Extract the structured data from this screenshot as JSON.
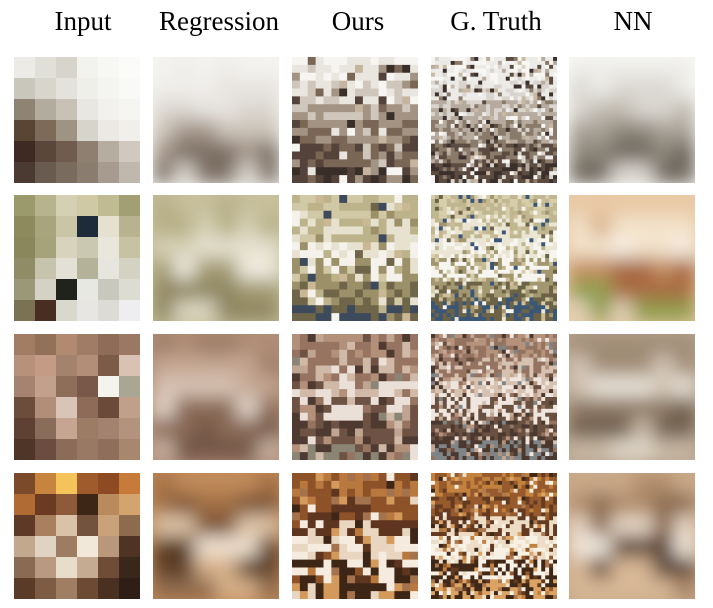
{
  "figure": {
    "columns": [
      {
        "key": "input",
        "label": "Input"
      },
      {
        "key": "regression",
        "label": "Regression"
      },
      {
        "key": "ours",
        "label": "Ours"
      },
      {
        "key": "ground_truth",
        "label": "G. Truth"
      },
      {
        "key": "nn",
        "label": "NN"
      }
    ],
    "rows": 4,
    "palettes": [
      {
        "scene": "bright-bedroom",
        "input": [
          "#ecebe6",
          "#e0dfd8",
          "#d6d4cb",
          "#f2f2ee",
          "#f7f7f4",
          "#fbfbf9",
          "#c9c6bb",
          "#d8d6cc",
          "#e3e2dc",
          "#efefe9",
          "#f4f4f1",
          "#f9f9f7",
          "#8f8373",
          "#b3ab9d",
          "#c8c2b6",
          "#e8e7e2",
          "#f2f1ee",
          "#f5f5f2",
          "#5a4434",
          "#7d6a58",
          "#9f9383",
          "#d7d4cc",
          "#ece9e4",
          "#f0efeb",
          "#3e2a22",
          "#5a463a",
          "#6f5c4e",
          "#8e7f70",
          "#b6aca0",
          "#d1c9bf",
          "#4b3a31",
          "#6a5b50",
          "#7a6b5f",
          "#8b7c70",
          "#a79a8e",
          "#c1b8ad"
        ],
        "regression": [
          "#f4f3f0",
          "#efedea",
          "#e7e4df",
          "#dcd7d0",
          "#ccc3b8",
          "#a4968a",
          "#7c6e63",
          "#d8d2c9"
        ],
        "ours": [
          "#f6f5f2",
          "#e9e6e0",
          "#cfc7bc",
          "#a39382",
          "#7a6654",
          "#54433a",
          "#3a2e29",
          "#c6b59e"
        ],
        "ground_truth": [
          "#f7f6f3",
          "#ecebe8",
          "#d9d5ce",
          "#b6ab9e",
          "#8a7a6a",
          "#5c4b40",
          "#3b302b",
          "#c9b9a2"
        ],
        "nn": [
          "#f9f9f7",
          "#eeede9",
          "#dad7d0",
          "#c1bcb1",
          "#a9a297",
          "#8f877c",
          "#6e665c",
          "#d6d2ca"
        ]
      },
      {
        "scene": "olive-bedroom",
        "input": [
          "#9b9a6c",
          "#b7b38c",
          "#d4d0b3",
          "#cfc9a6",
          "#c1bb93",
          "#a29f74",
          "#8d8b5e",
          "#a8a57d",
          "#c9c5a6",
          "#1e2b3a",
          "#e4e1cf",
          "#b8b38e",
          "#8a875d",
          "#a6a27a",
          "#d7d3bd",
          "#cac8b0",
          "#e9e7dc",
          "#c6c2a2",
          "#8f8c66",
          "#c7c4ad",
          "#e3e1d5",
          "#b5b29a",
          "#e6e5de",
          "#d4d2c2",
          "#9a9876",
          "#d3d2c5",
          "#1f231c",
          "#e8e8e2",
          "#c9c8bd",
          "#dddcd3",
          "#7a7253",
          "#4a2d22",
          "#d9d8cd",
          "#e7e6e2",
          "#dcdbd5",
          "#eeeef0"
        ],
        "regression": [
          "#c6bf9a",
          "#b6ae86",
          "#d8d2b7",
          "#e6e1cf",
          "#f0ede2",
          "#a49b73",
          "#8f8660",
          "#dcd6c1"
        ],
        "ours": [
          "#d1c9a5",
          "#bcb38b",
          "#e7e2cf",
          "#f4f2ea",
          "#9c9069",
          "#6f6549",
          "#3d4a5c",
          "#c9b893"
        ],
        "ground_truth": [
          "#d6ceab",
          "#c0b790",
          "#ebe6d4",
          "#f7f5ef",
          "#a3976f",
          "#6c6246",
          "#3b5777",
          "#cdbd98"
        ],
        "nn": [
          "#e9c9a5",
          "#d9b188",
          "#f3e3cc",
          "#f7efe3",
          "#c48f62",
          "#a86a42",
          "#8f9d4e",
          "#e2d2b8"
        ]
      },
      {
        "scene": "tan-bedroom",
        "input": [
          "#a27c63",
          "#93705a",
          "#b18a70",
          "#a07c66",
          "#8e6c57",
          "#9a7864",
          "#b7917a",
          "#c49c85",
          "#a3826e",
          "#b28e79",
          "#7c5b48",
          "#d9c2b3",
          "#a68270",
          "#c2a08c",
          "#8e6d5b",
          "#795849",
          "#f4f4ee",
          "#a9a693",
          "#6c4c3b",
          "#b08e7a",
          "#d9c5b8",
          "#8d6b58",
          "#6a4a38",
          "#c0a08a",
          "#5e4133",
          "#8a6c5a",
          "#c6a692",
          "#9d7c66",
          "#a48270",
          "#b4937e",
          "#4f3528",
          "#6a4d3e",
          "#8b6c59",
          "#9a7964",
          "#8f6f5b",
          "#a9876f"
        ],
        "regression": [
          "#b08d77",
          "#9d7b66",
          "#c4a793",
          "#d8c2b3",
          "#e6d9cf",
          "#8a6a57",
          "#735646",
          "#c9b3a3"
        ],
        "ours": [
          "#b39079",
          "#967461",
          "#d1b9a8",
          "#ebe0d8",
          "#6e5344",
          "#4e3a30",
          "#8b8575",
          "#c0a692"
        ],
        "ground_truth": [
          "#b5927b",
          "#957361",
          "#d7c2b2",
          "#efe6df",
          "#6a5040",
          "#4b382e",
          "#7f8486",
          "#c2a893"
        ],
        "nn": [
          "#b7a48e",
          "#a08c76",
          "#d3c6b6",
          "#ebe4da",
          "#8d7965",
          "#6f5e4d",
          "#c8b9a5",
          "#e0d7ca"
        ]
      },
      {
        "scene": "ornate-bedroom",
        "input": [
          "#7a4a2a",
          "#c6843e",
          "#f4c35a",
          "#a05b2c",
          "#8e4a22",
          "#c77b3a",
          "#b06a33",
          "#6b3a22",
          "#8d5a3a",
          "#3e2617",
          "#b98a5c",
          "#d4a46e",
          "#5e3a26",
          "#a88060",
          "#d9c2a8",
          "#73533e",
          "#caa27a",
          "#8f6b4e",
          "#c2a98e",
          "#e0d3c2",
          "#9d7c62",
          "#f1e8da",
          "#b9977a",
          "#4f3423",
          "#8a6a52",
          "#b89a80",
          "#e8dcca",
          "#c5ab92",
          "#6e4c36",
          "#3a271c",
          "#5a3b28",
          "#7d5b44",
          "#a07e64",
          "#6d4a33",
          "#4a3020",
          "#2e1e15"
        ],
        "regression": [
          "#c08a5a",
          "#a06e44",
          "#7c5234",
          "#e0c6a8",
          "#f0e2d0",
          "#5c3c28",
          "#d6b08a",
          "#8f6a4e"
        ],
        "ours": [
          "#b8783e",
          "#8e5228",
          "#5e3620",
          "#e8d6c0",
          "#f5ecdf",
          "#3e2616",
          "#d49a5c",
          "#a4724c"
        ],
        "ground_truth": [
          "#c2823e",
          "#965a2c",
          "#643a20",
          "#edddc6",
          "#f8f1e6",
          "#402818",
          "#dba464",
          "#ac7a50"
        ],
        "nn": [
          "#c9a888",
          "#b08c6c",
          "#8a6a50",
          "#e6d6c4",
          "#f2e9df",
          "#5a4334",
          "#d8b896",
          "#a88466"
        ]
      }
    ]
  }
}
